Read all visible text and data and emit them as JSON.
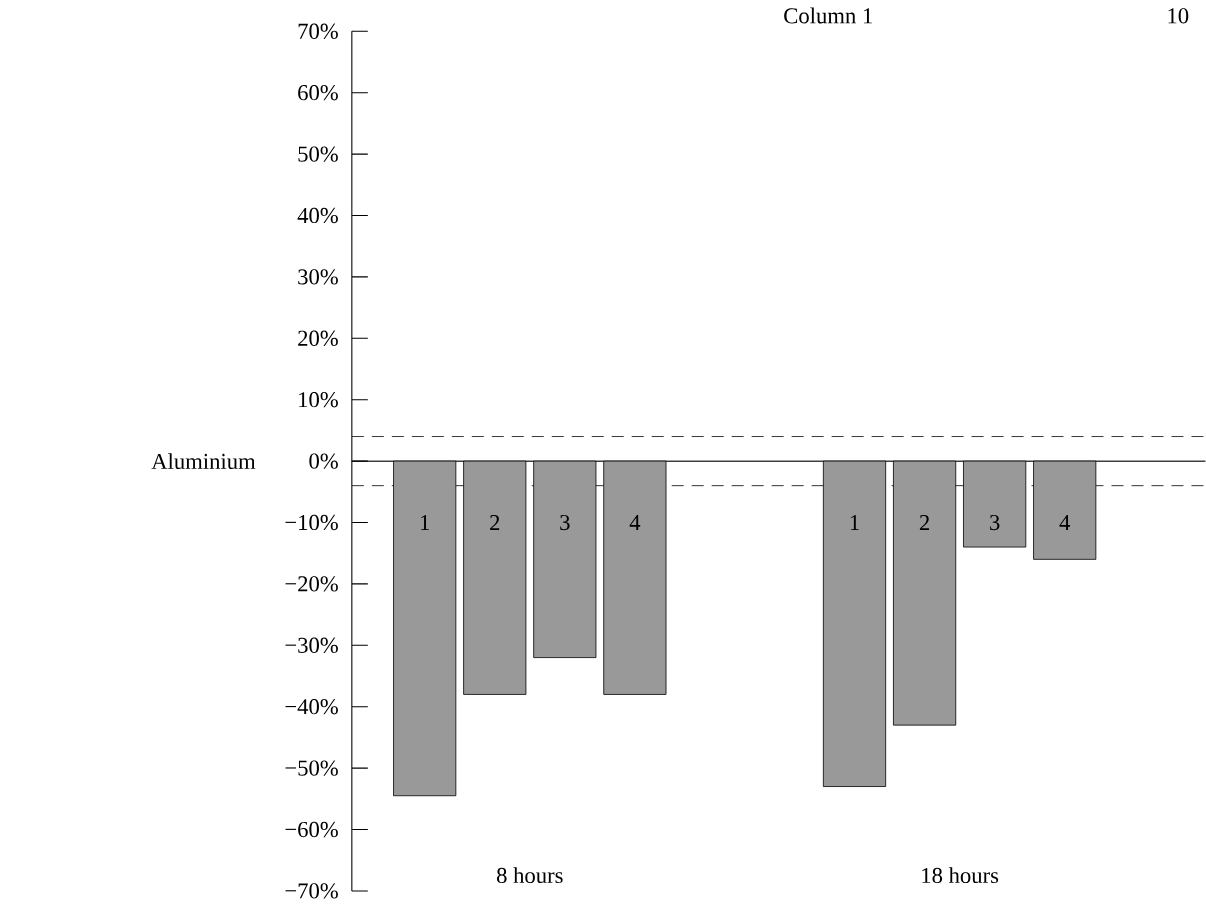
{
  "chart_data": {
    "type": "bar",
    "ylabel": "Aluminium",
    "categories": [
      "8 hours",
      "18 hours"
    ],
    "series": [
      {
        "name": "1",
        "color": "#000000",
        "values": [
          -54.5,
          -53
        ]
      },
      {
        "name": "2",
        "color": "#000000",
        "values": [
          -38,
          -43
        ]
      },
      {
        "name": "3",
        "color": "#000000",
        "values": [
          -32,
          -14
        ]
      },
      {
        "name": "4",
        "color": "#000000",
        "values": [
          -38,
          -16
        ]
      }
    ],
    "ylim": [
      -70,
      70
    ],
    "yticks": [
      {
        "value": 70,
        "label": "70%"
      },
      {
        "value": 60,
        "label": "60%"
      },
      {
        "value": 50,
        "label": "50%"
      },
      {
        "value": 40,
        "label": "40%"
      },
      {
        "value": 30,
        "label": "30%"
      },
      {
        "value": 20,
        "label": "20%"
      },
      {
        "value": 10,
        "label": "10%"
      },
      {
        "value": 0,
        "label": "0%"
      },
      {
        "value": -10,
        "label": "−10%"
      },
      {
        "value": -20,
        "label": "−20%"
      },
      {
        "value": -30,
        "label": "−30%"
      },
      {
        "value": -40,
        "label": "−40%"
      },
      {
        "value": -50,
        "label": "−50%"
      },
      {
        "value": -60,
        "label": "−60%"
      },
      {
        "value": -70,
        "label": "−70%"
      }
    ],
    "ref_lines": [
      {
        "axis": "y",
        "value": 4,
        "line_style": "dashed"
      },
      {
        "axis": "y",
        "value": -4,
        "line_style": "dashed"
      }
    ],
    "annotations": [
      "Column 1",
      "10"
    ]
  }
}
